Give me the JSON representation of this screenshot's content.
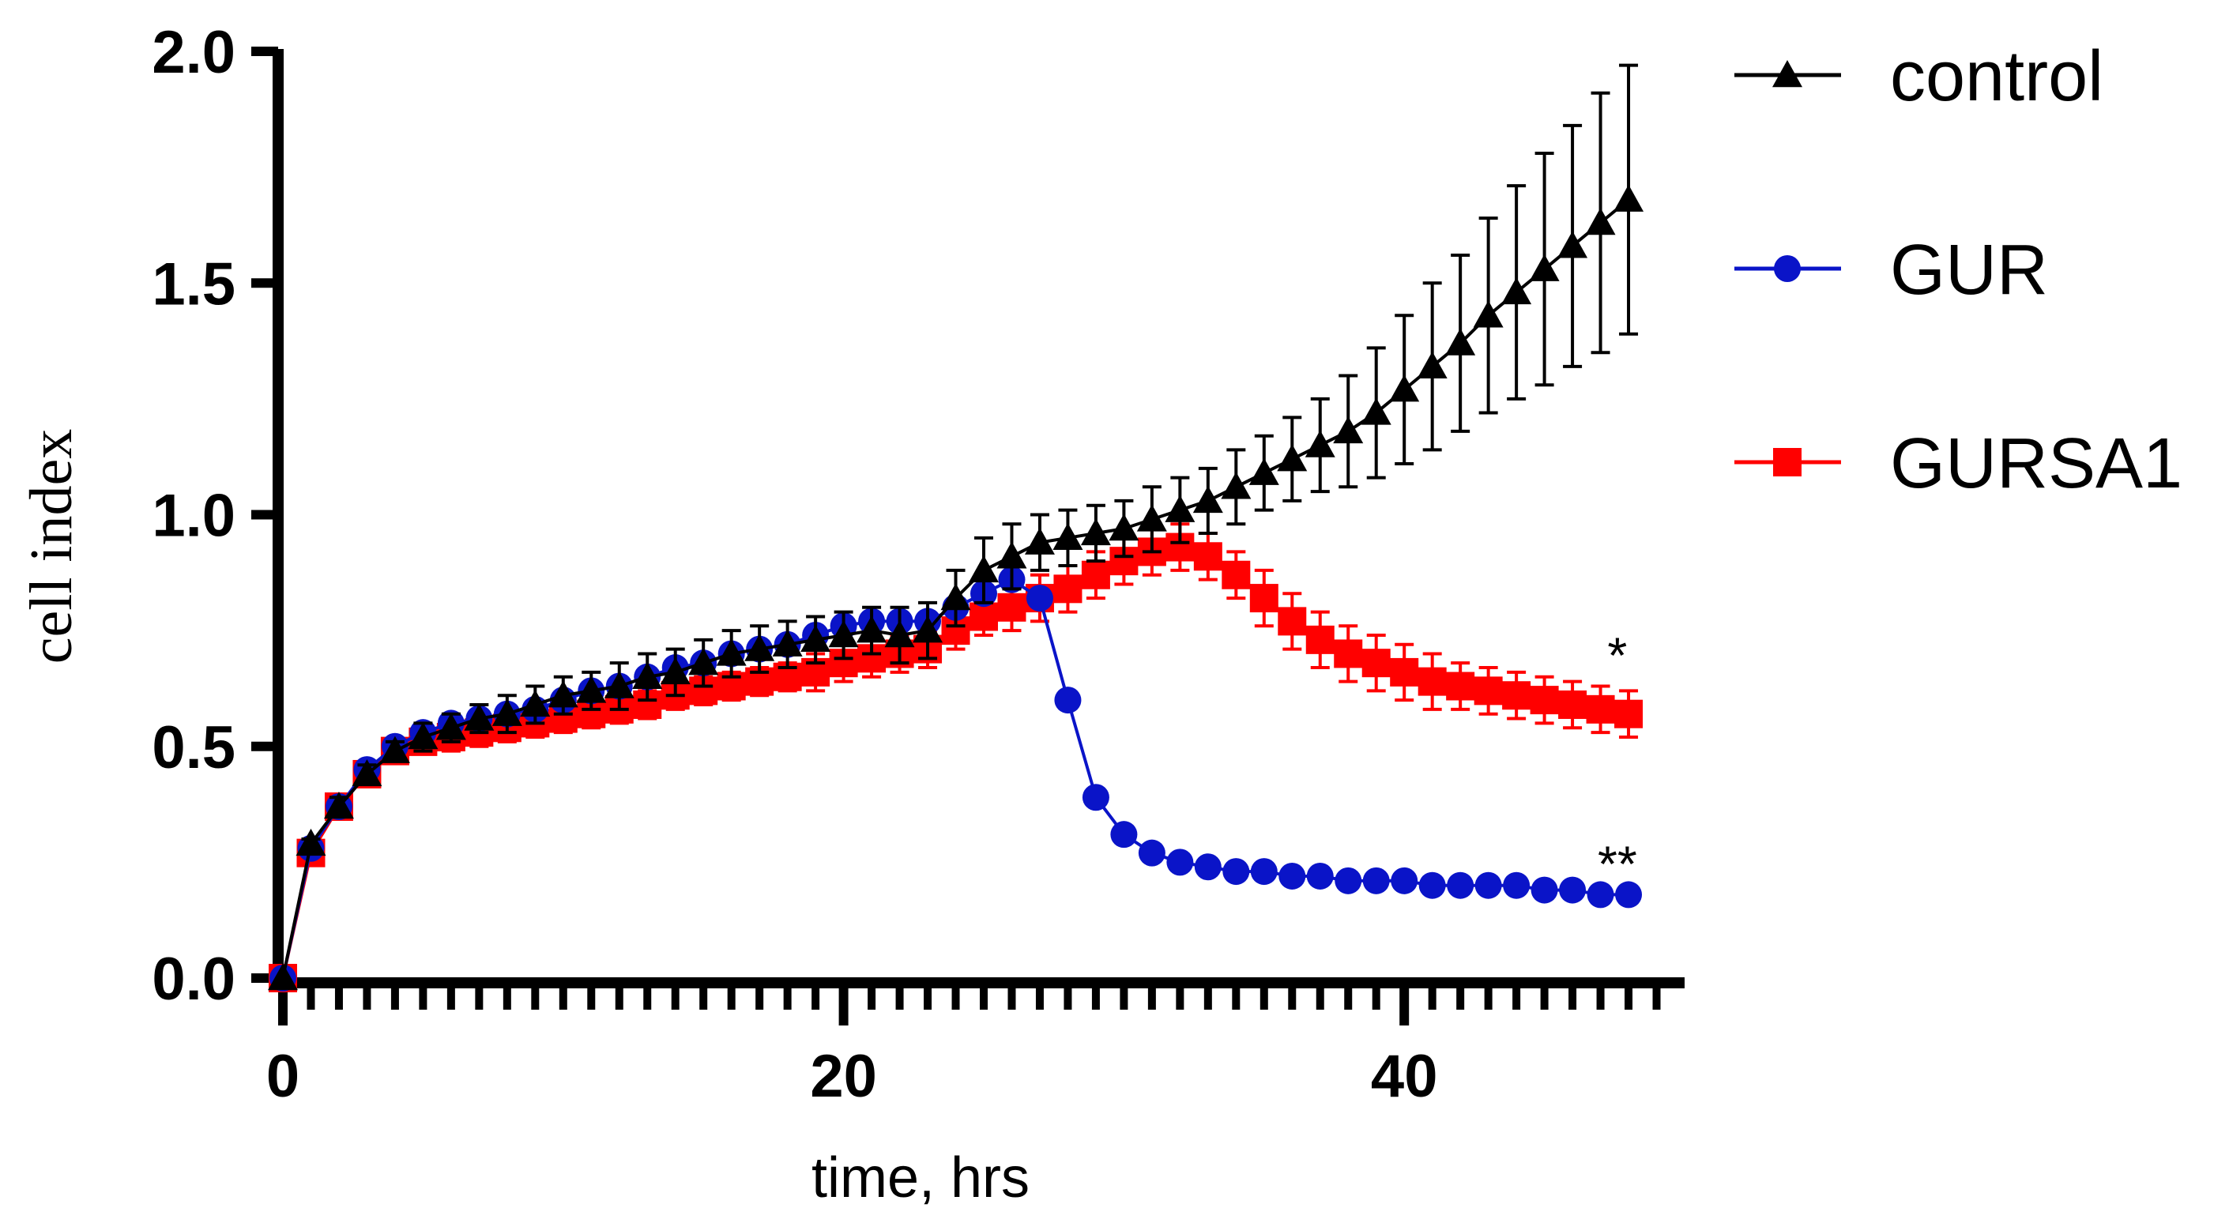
{
  "chart_data": {
    "type": "line",
    "title": "",
    "xlabel": "time, hrs",
    "ylabel": "cell index",
    "xlim": [
      0,
      50
    ],
    "ylim": [
      0,
      2.0
    ],
    "xticks_major": [
      0,
      20,
      40
    ],
    "xticks_minor_step": 1,
    "yticks": [
      0.0,
      0.5,
      1.0,
      1.5,
      2.0
    ],
    "ytick_labels": [
      "0.0",
      "0.5",
      "1.0",
      "1.5",
      "2.0"
    ],
    "xtick_labels": [
      "0",
      "20",
      "40"
    ],
    "grid": false,
    "legend_position": "top-right outside",
    "x": [
      0,
      1,
      2,
      3,
      4,
      5,
      6,
      7,
      8,
      9,
      10,
      11,
      12,
      13,
      14,
      15,
      16,
      17,
      18,
      19,
      20,
      21,
      22,
      23,
      24,
      25,
      26,
      27,
      28,
      29,
      30,
      31,
      32,
      33,
      34,
      35,
      36,
      37,
      38,
      39,
      40,
      41,
      42,
      43,
      44,
      45,
      46,
      47,
      48
    ],
    "series": [
      {
        "name": "control",
        "color": "#000000",
        "marker": "triangle",
        "values": [
          0,
          0.29,
          0.37,
          0.44,
          0.49,
          0.52,
          0.54,
          0.56,
          0.57,
          0.59,
          0.61,
          0.62,
          0.63,
          0.65,
          0.66,
          0.68,
          0.7,
          0.71,
          0.72,
          0.73,
          0.74,
          0.75,
          0.74,
          0.75,
          0.82,
          0.88,
          0.91,
          0.94,
          0.95,
          0.96,
          0.97,
          0.99,
          1.01,
          1.03,
          1.06,
          1.09,
          1.12,
          1.15,
          1.18,
          1.22,
          1.27,
          1.32,
          1.37,
          1.43,
          1.48,
          1.53,
          1.58,
          1.63,
          1.68
        ],
        "errors": [
          0,
          0.01,
          0.02,
          0.02,
          0.02,
          0.03,
          0.03,
          0.03,
          0.04,
          0.04,
          0.04,
          0.04,
          0.05,
          0.05,
          0.05,
          0.05,
          0.05,
          0.05,
          0.05,
          0.05,
          0.05,
          0.05,
          0.06,
          0.06,
          0.06,
          0.07,
          0.07,
          0.06,
          0.06,
          0.06,
          0.06,
          0.07,
          0.07,
          0.07,
          0.08,
          0.08,
          0.09,
          0.1,
          0.12,
          0.14,
          0.16,
          0.18,
          0.19,
          0.21,
          0.23,
          0.25,
          0.26,
          0.28,
          0.29
        ]
      },
      {
        "name": "GUR",
        "color": "#0a14c8",
        "marker": "circle",
        "values": [
          0,
          0.28,
          0.37,
          0.45,
          0.5,
          0.53,
          0.55,
          0.56,
          0.57,
          0.58,
          0.6,
          0.62,
          0.63,
          0.65,
          0.67,
          0.68,
          0.7,
          0.71,
          0.72,
          0.74,
          0.76,
          0.77,
          0.77,
          0.77,
          0.8,
          0.83,
          0.86,
          0.82,
          0.6,
          0.39,
          0.31,
          0.27,
          0.25,
          0.24,
          0.23,
          0.23,
          0.22,
          0.22,
          0.21,
          0.21,
          0.21,
          0.2,
          0.2,
          0.2,
          0.2,
          0.19,
          0.19,
          0.18,
          0.18
        ],
        "errors": []
      },
      {
        "name": "GURSA1",
        "color": "#ff0000",
        "marker": "square",
        "values": [
          0,
          0.27,
          0.37,
          0.44,
          0.49,
          0.51,
          0.52,
          0.53,
          0.54,
          0.55,
          0.56,
          0.57,
          0.58,
          0.59,
          0.61,
          0.62,
          0.63,
          0.64,
          0.65,
          0.66,
          0.68,
          0.69,
          0.7,
          0.71,
          0.75,
          0.78,
          0.8,
          0.82,
          0.84,
          0.87,
          0.9,
          0.92,
          0.93,
          0.91,
          0.87,
          0.82,
          0.77,
          0.73,
          0.7,
          0.68,
          0.66,
          0.64,
          0.63,
          0.62,
          0.61,
          0.6,
          0.59,
          0.58,
          0.57
        ],
        "errors": [
          0,
          0.01,
          0.02,
          0.02,
          0.02,
          0.02,
          0.03,
          0.03,
          0.03,
          0.03,
          0.03,
          0.03,
          0.03,
          0.03,
          0.03,
          0.03,
          0.03,
          0.03,
          0.03,
          0.04,
          0.04,
          0.04,
          0.04,
          0.04,
          0.04,
          0.04,
          0.05,
          0.05,
          0.05,
          0.05,
          0.05,
          0.05,
          0.05,
          0.05,
          0.05,
          0.06,
          0.06,
          0.06,
          0.06,
          0.06,
          0.06,
          0.06,
          0.05,
          0.05,
          0.05,
          0.05,
          0.05,
          0.05,
          0.05
        ]
      }
    ],
    "annotations": [
      {
        "text": "*",
        "x": 47.6,
        "y": 0.71
      },
      {
        "text": "**",
        "x": 47.6,
        "y": 0.26
      }
    ]
  }
}
